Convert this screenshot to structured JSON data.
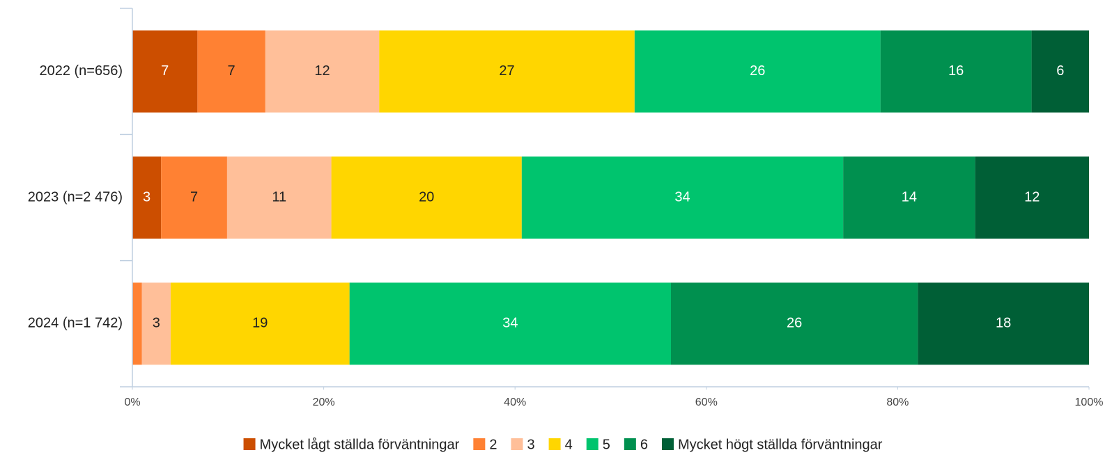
{
  "chart_data": {
    "type": "stacked-bar-horizontal",
    "categories": [
      "2022 (n=656)",
      "2023 (n=2 476)",
      "2024 (n=1 742)"
    ],
    "series": [
      {
        "name": "Mycket lågt ställda förväntningar",
        "color": "#cc4e00",
        "values": [
          6.8,
          3.0,
          0
        ],
        "value_labels": [
          "7",
          "3",
          null
        ]
      },
      {
        "name": "2",
        "color": "#ff8133",
        "values": [
          7.1,
          6.9,
          1.0
        ],
        "value_labels": [
          "7",
          "7",
          null
        ]
      },
      {
        "name": "3",
        "color": "#ffbf99",
        "values": [
          11.9,
          10.9,
          3.0
        ],
        "value_labels": [
          "12",
          "11",
          "3"
        ]
      },
      {
        "name": "4",
        "color": "#ffd600",
        "values": [
          26.7,
          19.9,
          18.7
        ],
        "value_labels": [
          "27",
          "20",
          "19"
        ]
      },
      {
        "name": "5",
        "color": "#00c46e",
        "values": [
          25.7,
          33.6,
          33.6
        ],
        "value_labels": [
          "26",
          "34",
          "34"
        ]
      },
      {
        "name": "6",
        "color": "#00904f",
        "values": [
          15.8,
          13.8,
          25.8
        ],
        "value_labels": [
          "16",
          "14",
          "26"
        ]
      },
      {
        "name": "Mycket högt ställda förväntningar",
        "color": "#005f36",
        "values": [
          6.0,
          11.9,
          17.9
        ],
        "value_labels": [
          "6",
          "12",
          "18"
        ]
      }
    ],
    "xlim": [
      0,
      100
    ],
    "xticks": [
      {
        "value": 0,
        "label": "0%"
      },
      {
        "value": 20,
        "label": "20%"
      },
      {
        "value": 40,
        "label": "40%"
      },
      {
        "value": 60,
        "label": "60%"
      },
      {
        "value": 80,
        "label": "80%"
      },
      {
        "value": 100,
        "label": "100%"
      }
    ],
    "legend": "bottom"
  }
}
